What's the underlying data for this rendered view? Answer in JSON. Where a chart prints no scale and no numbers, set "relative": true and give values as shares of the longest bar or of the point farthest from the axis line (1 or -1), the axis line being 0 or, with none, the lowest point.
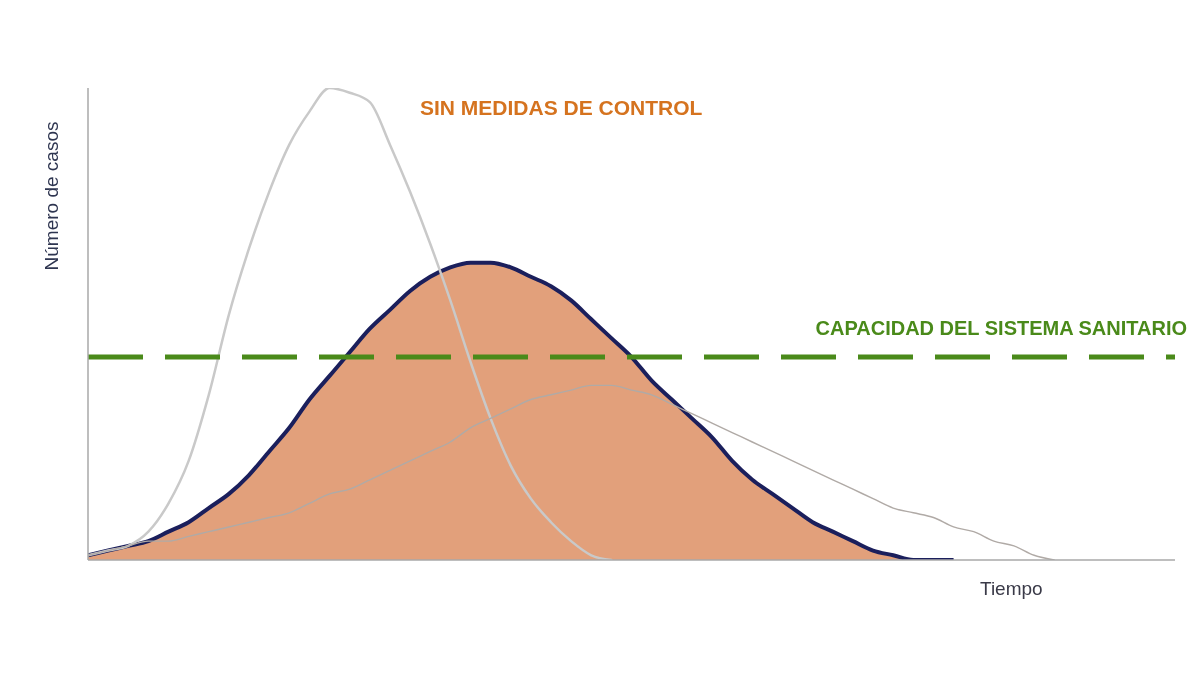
{
  "chart_data": {
    "type": "line",
    "relative": true,
    "marker": "none",
    "xlabel": "Tiempo",
    "ylabel": "Número de casos",
    "annotations": [
      "SIN MEDIDAS DE CONTROL"
    ],
    "categories": [
      null,
      null,
      null,
      null,
      null,
      null,
      null,
      null,
      null,
      null,
      null,
      null,
      null,
      null,
      null,
      null,
      null,
      null,
      null,
      null,
      null,
      null,
      null,
      null,
      null,
      null,
      null,
      null,
      null,
      null,
      null,
      null,
      null,
      null,
      null,
      null,
      null,
      null,
      null,
      null,
      null,
      null,
      null,
      null,
      null,
      null,
      null,
      null,
      null,
      null,
      null,
      null,
      null,
      null,
      null
    ],
    "series": [
      {
        "color": "#c9c9c9",
        "values": [
          0.01,
          0.02,
          0.03,
          0.06,
          0.12,
          0.21,
          0.35,
          0.52,
          0.66,
          0.78,
          0.88,
          0.95,
          1,
          0.99,
          0.97,
          0.88,
          0.78,
          0.67,
          0.55,
          0.42,
          0.3,
          0.2,
          0.13,
          0.08,
          0.04,
          0.01,
          0,
          null,
          null,
          null,
          null,
          null,
          null,
          null,
          null,
          null,
          null,
          null,
          null,
          null,
          null,
          null,
          null,
          null,
          null,
          null,
          null,
          null,
          null,
          null,
          null,
          null,
          null,
          null,
          null
        ]
      },
      {
        "color": "#b0aaa6",
        "values": [
          0.01,
          0.02,
          0.03,
          0.04,
          0.04,
          0.05,
          0.06,
          0.07,
          0.08,
          0.09,
          0.1,
          0.12,
          0.14,
          0.15,
          0.17,
          0.19,
          0.21,
          0.23,
          0.25,
          0.28,
          0.3,
          0.32,
          0.34,
          0.35,
          0.36,
          0.37,
          0.37,
          0.36,
          0.35,
          0.33,
          0.31,
          0.29,
          0.27,
          0.25,
          0.23,
          0.21,
          0.19,
          0.17,
          0.15,
          0.13,
          0.11,
          0.1,
          0.09,
          0.07,
          0.06,
          0.04,
          0.03,
          0.01,
          0,
          null,
          null,
          null,
          null,
          null,
          null
        ]
      },
      {
        "type": "area",
        "color": "#df966d",
        "values": [
          0.01,
          0.02,
          0.03,
          0.04,
          0.06,
          0.08,
          0.11,
          0.14,
          0.18,
          0.23,
          0.28,
          0.34,
          0.39,
          0.44,
          0.49,
          0.53,
          0.57,
          0.6,
          0.62,
          0.63,
          0.63,
          0.62,
          0.6,
          0.58,
          0.55,
          0.51,
          0.47,
          0.43,
          0.38,
          0.34,
          0.3,
          0.26,
          0.21,
          0.17,
          0.14,
          0.11,
          0.08,
          0.06,
          0.04,
          0.02,
          0.01,
          0,
          0,
          0,
          null,
          null,
          null,
          null,
          null,
          null,
          null,
          null,
          null,
          null,
          null
        ]
      }
    ],
    "ref_lines": [
      {
        "axis": "y",
        "value": 0.43,
        "label": "CAPACIDAD DEL SISTEMA SANITARIO",
        "color": "#4a8a1a",
        "line_style": "dashed"
      }
    ]
  }
}
